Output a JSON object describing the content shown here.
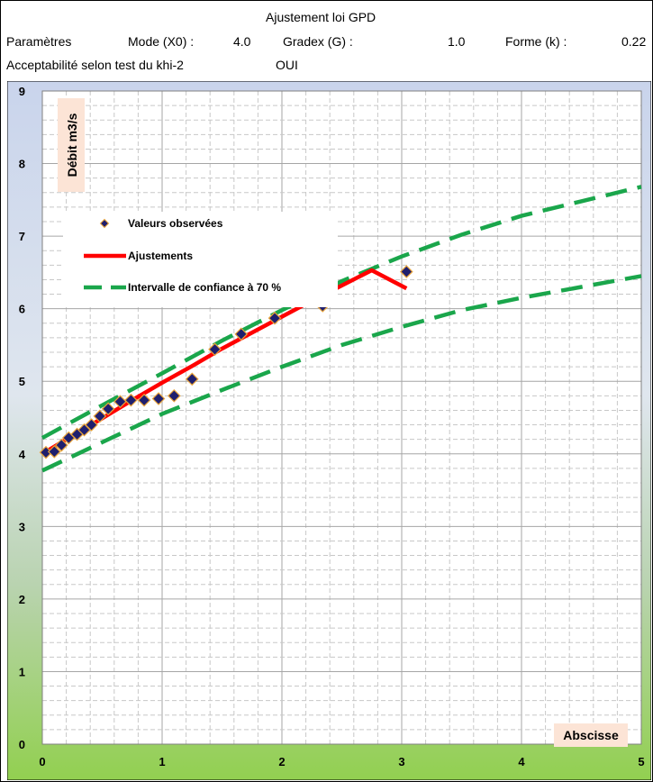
{
  "header": {
    "title": "Ajustement loi GPD",
    "params_label": "Paramètres",
    "mode_label": "Mode (X0) :",
    "mode_value": "4.0",
    "gradex_label": "Gradex (G) :",
    "gradex_value": "1.0",
    "forme_label": "Forme (k) :",
    "forme_value": "0.22",
    "test_label": "Acceptabilité selon test du khi-2",
    "test_value": "OUI"
  },
  "chart_data": {
    "type": "scatter",
    "title": "",
    "xlabel": "Abscisse",
    "ylabel": "Débit m3/s",
    "xlim": [
      0,
      5
    ],
    "ylim": [
      0,
      9
    ],
    "xticks": [
      0,
      1,
      2,
      3,
      4,
      5
    ],
    "yticks": [
      0,
      1,
      2,
      3,
      4,
      5,
      6,
      7,
      8,
      9
    ],
    "grid": true,
    "legend_position": "top-left",
    "colors": {
      "observed": "#1f1f6e",
      "observed_edge": "#e8a33a",
      "fit": "#ff0000",
      "ci": "#1aa64b"
    },
    "series": [
      {
        "name": "Valeurs observées",
        "kind": "markers",
        "x": [
          0.03,
          0.1,
          0.16,
          0.22,
          0.29,
          0.35,
          0.41,
          0.48,
          0.55,
          0.65,
          0.74,
          0.85,
          0.97,
          1.1,
          1.25,
          1.44,
          1.66,
          1.94,
          2.34,
          3.04
        ],
        "y": [
          4.02,
          4.03,
          4.12,
          4.22,
          4.27,
          4.33,
          4.4,
          4.52,
          4.62,
          4.72,
          4.74,
          4.74,
          4.76,
          4.8,
          5.03,
          5.44,
          5.65,
          5.87,
          6.04,
          6.51
        ]
      },
      {
        "name": "Ajustements",
        "kind": "line",
        "x": [
          0,
          0.25,
          0.5,
          0.75,
          1.0,
          1.25,
          1.5,
          1.75,
          2.0,
          2.25,
          2.5,
          2.75,
          3.04
        ],
        "y": [
          4.0,
          4.25,
          4.49,
          4.74,
          4.98,
          5.21,
          5.45,
          5.67,
          5.89,
          6.11,
          6.32,
          6.53,
          6.28
        ]
      },
      {
        "name": "Intervalle de confiance à 70 %",
        "kind": "dashed",
        "x": [
          0,
          0.5,
          1.0,
          1.5,
          2.0,
          2.5,
          3.0,
          3.5,
          4.0,
          4.5,
          5.0
        ],
        "y": [
          4.22,
          4.67,
          5.11,
          5.56,
          5.98,
          6.38,
          6.72,
          7.02,
          7.28,
          7.48,
          7.68
        ]
      },
      {
        "name": "",
        "kind": "dashed",
        "x": [
          0,
          0.5,
          1.0,
          1.5,
          2.0,
          2.5,
          3.0,
          3.5,
          4.0,
          4.5,
          5.0
        ],
        "y": [
          3.77,
          4.16,
          4.55,
          4.88,
          5.2,
          5.5,
          5.75,
          5.98,
          6.15,
          6.3,
          6.45
        ]
      }
    ]
  }
}
